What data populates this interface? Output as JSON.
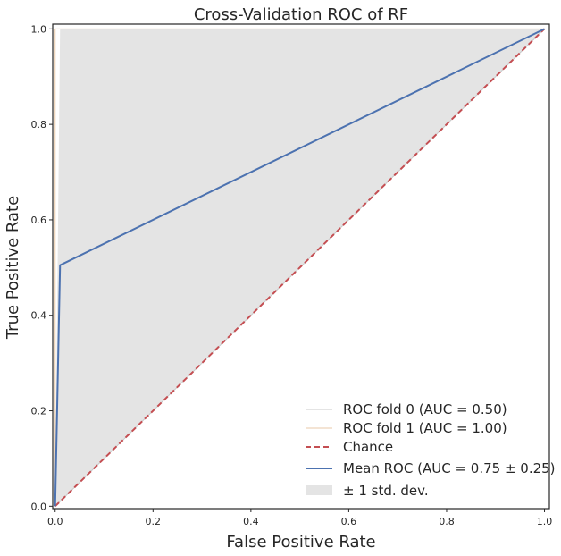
{
  "chart_data": {
    "type": "line",
    "title": "Cross-Validation ROC of RF",
    "xlabel": "False Positive Rate",
    "ylabel": "True Positive Rate",
    "xlim": [
      -0.005,
      1.01
    ],
    "ylim": [
      -0.005,
      1.01
    ],
    "xticks": [
      0.0,
      0.2,
      0.4,
      0.6,
      0.8,
      1.0
    ],
    "yticks": [
      0.0,
      0.2,
      0.4,
      0.6,
      0.8,
      1.0
    ],
    "xtick_labels": [
      "0.0",
      "0.2",
      "0.4",
      "0.6",
      "0.8",
      "1.0"
    ],
    "ytick_labels": [
      "0.0",
      "0.2",
      "0.4",
      "0.6",
      "0.8",
      "1.0"
    ],
    "series": [
      {
        "name": "ROC fold 0 (AUC = 0.50)",
        "color": "#c8c8c8",
        "dash": "solid",
        "x": [
          0.0,
          1.0
        ],
        "y": [
          0.0,
          1.0
        ]
      },
      {
        "name": "ROC fold 1 (AUC = 1.00)",
        "color": "#e8c9a8",
        "dash": "solid",
        "x": [
          0.0,
          0.0,
          1.0
        ],
        "y": [
          0.0,
          1.0,
          1.0
        ]
      },
      {
        "name": "Chance",
        "color": "#c44e52",
        "dash": "dashed",
        "x": [
          0.0,
          1.0
        ],
        "y": [
          0.0,
          1.0
        ]
      },
      {
        "name": "Mean ROC (AUC = 0.75 ± 0.25)",
        "color": "#4c72b0",
        "dash": "solid",
        "x": [
          0.0,
          0.01,
          1.0
        ],
        "y": [
          0.0,
          0.505,
          1.0
        ]
      }
    ],
    "std_band": {
      "name": "± 1 std. dev.",
      "color": "#d9d9d9",
      "x": [
        0.0,
        0.01,
        1.0
      ],
      "upper": [
        0.0,
        1.0,
        1.0
      ],
      "lower": [
        0.0,
        0.01,
        1.0
      ]
    },
    "legend_location": "lower-right",
    "grid": false
  }
}
